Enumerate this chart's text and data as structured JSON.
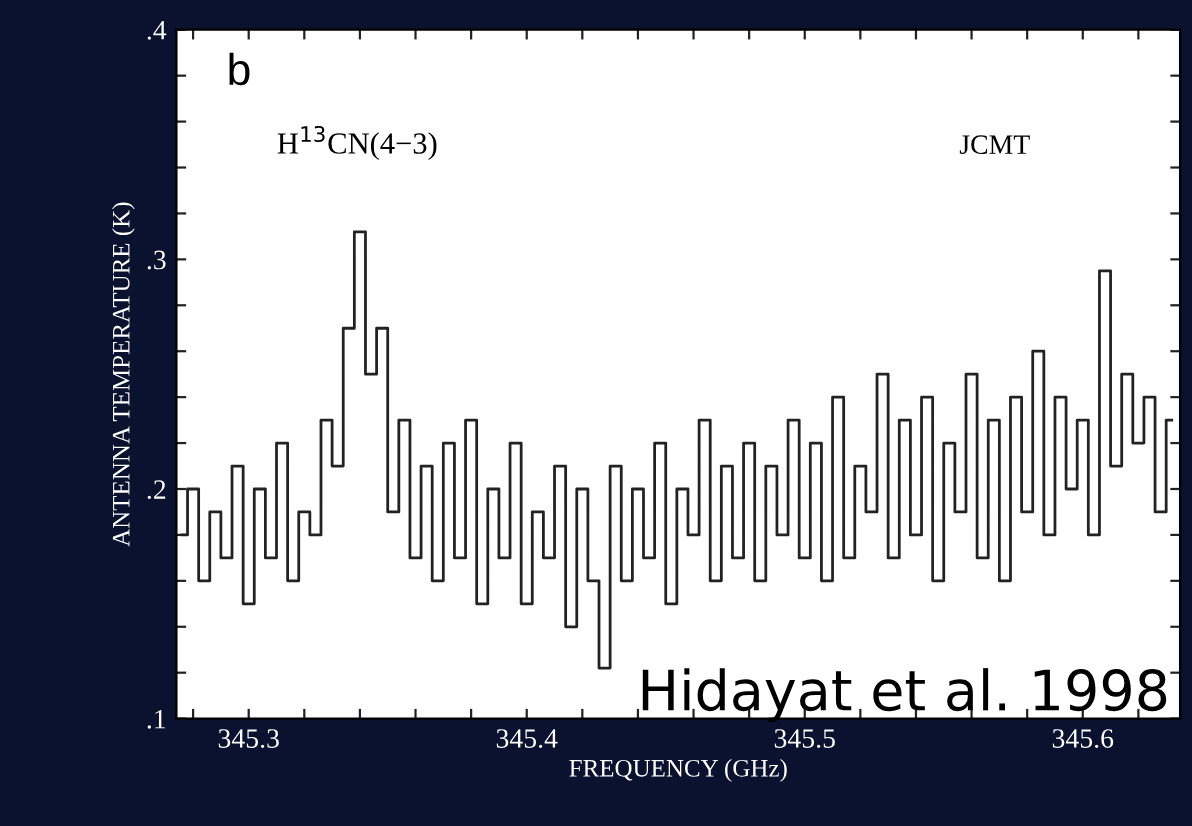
{
  "chart_data": {
    "type": "step",
    "xlabel": "FREQUENCY (GHz)",
    "ylabel": "ANTENNA TEMPERATURE (K)",
    "annotations": [
      "b",
      "H$^{13}$CN(4−3)",
      "JCMT",
      "Hidayat et al. 1998"
    ],
    "x": [
      345.276,
      345.28,
      345.284,
      345.288,
      345.292,
      345.296,
      345.3,
      345.304,
      345.308,
      345.312,
      345.316,
      345.32,
      345.324,
      345.328,
      345.332,
      345.336,
      345.34,
      345.344,
      345.348,
      345.352,
      345.356,
      345.36,
      345.364,
      345.368,
      345.372,
      345.376,
      345.38,
      345.384,
      345.388,
      345.392,
      345.396,
      345.4,
      345.404,
      345.408,
      345.412,
      345.416,
      345.42,
      345.424,
      345.428,
      345.432,
      345.436,
      345.44,
      345.444,
      345.448,
      345.452,
      345.456,
      345.46,
      345.464,
      345.468,
      345.472,
      345.476,
      345.48,
      345.484,
      345.488,
      345.492,
      345.496,
      345.5,
      345.504,
      345.508,
      345.512,
      345.516,
      345.52,
      345.524,
      345.528,
      345.532,
      345.536,
      345.54,
      345.544,
      345.548,
      345.552,
      345.556,
      345.56,
      345.564,
      345.568,
      345.572,
      345.576,
      345.58,
      345.584,
      345.588,
      345.592,
      345.596,
      345.6,
      345.604,
      345.608,
      345.612,
      345.616,
      345.62,
      345.624,
      345.628,
      345.632
    ],
    "values": [
      0.18,
      0.2,
      0.16,
      0.19,
      0.17,
      0.21,
      0.15,
      0.2,
      0.17,
      0.22,
      0.16,
      0.19,
      0.18,
      0.23,
      0.21,
      0.27,
      0.312,
      0.25,
      0.27,
      0.19,
      0.23,
      0.17,
      0.21,
      0.16,
      0.22,
      0.17,
      0.23,
      0.15,
      0.2,
      0.17,
      0.22,
      0.15,
      0.19,
      0.17,
      0.21,
      0.14,
      0.2,
      0.16,
      0.122,
      0.21,
      0.16,
      0.2,
      0.17,
      0.22,
      0.15,
      0.2,
      0.18,
      0.23,
      0.16,
      0.21,
      0.17,
      0.22,
      0.16,
      0.21,
      0.18,
      0.23,
      0.17,
      0.22,
      0.16,
      0.24,
      0.17,
      0.21,
      0.19,
      0.25,
      0.17,
      0.23,
      0.18,
      0.24,
      0.16,
      0.22,
      0.19,
      0.25,
      0.17,
      0.23,
      0.16,
      0.24,
      0.19,
      0.26,
      0.18,
      0.24,
      0.2,
      0.23,
      0.18,
      0.295,
      0.21,
      0.25,
      0.22,
      0.24,
      0.19,
      0.23
    ],
    "color": "#222222",
    "xlim": [
      345.274,
      345.635
    ],
    "xticks": [
      {
        "value": 345.28,
        "label": null
      },
      {
        "value": 345.3,
        "label": "345.3"
      },
      {
        "value": 345.32,
        "label": null
      },
      {
        "value": 345.34,
        "label": null
      },
      {
        "value": 345.36,
        "label": null
      },
      {
        "value": 345.38,
        "label": null
      },
      {
        "value": 345.4,
        "label": "345.4"
      },
      {
        "value": 345.42,
        "label": null
      },
      {
        "value": 345.44,
        "label": null
      },
      {
        "value": 345.46,
        "label": null
      },
      {
        "value": 345.48,
        "label": null
      },
      {
        "value": 345.5,
        "label": "345.5"
      },
      {
        "value": 345.52,
        "label": null
      },
      {
        "value": 345.54,
        "label": null
      },
      {
        "value": 345.56,
        "label": null
      },
      {
        "value": 345.58,
        "label": null
      },
      {
        "value": 345.6,
        "label": "345.6"
      },
      {
        "value": 345.62,
        "label": null
      }
    ],
    "ylim": [
      0.1,
      0.4
    ],
    "yticks": [
      {
        "value": 0.1,
        "label": ".1"
      },
      {
        "value": 0.12,
        "label": null
      },
      {
        "value": 0.14,
        "label": null
      },
      {
        "value": 0.16,
        "label": null
      },
      {
        "value": 0.18,
        "label": null
      },
      {
        "value": 0.2,
        "label": ".2"
      },
      {
        "value": 0.22,
        "label": null
      },
      {
        "value": 0.24,
        "label": null
      },
      {
        "value": 0.26,
        "label": null
      },
      {
        "value": 0.28,
        "label": null
      },
      {
        "value": 0.3,
        "label": ".3"
      },
      {
        "value": 0.32,
        "label": null
      },
      {
        "value": 0.34,
        "label": null
      },
      {
        "value": 0.36,
        "label": null
      },
      {
        "value": 0.38,
        "label": null
      },
      {
        "value": 0.4,
        "label": ".4"
      }
    ],
    "grid": false,
    "legend": false
  }
}
